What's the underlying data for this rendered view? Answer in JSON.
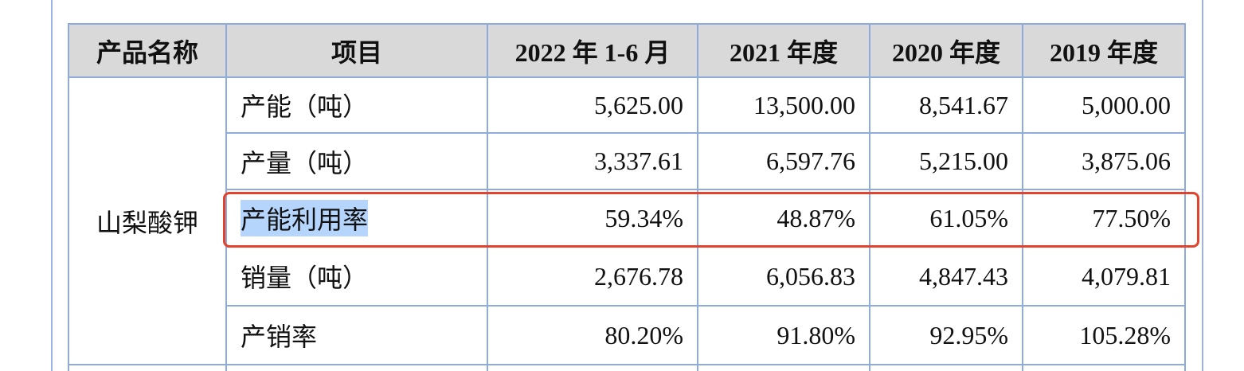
{
  "table": {
    "header": [
      "产品名称",
      "项目",
      "2022 年 1-6 月",
      "2021 年度",
      "2020 年度",
      "2019 年度"
    ],
    "product": "山梨酸钾",
    "rows": [
      [
        "产能（吨）",
        "5,625.00",
        "13,500.00",
        "8,541.67",
        "5,000.00"
      ],
      [
        "产量（吨）",
        "3,337.61",
        "6,597.76",
        "5,215.00",
        "3,875.06"
      ],
      [
        "产能利用率",
        "59.34%",
        "48.87%",
        "61.05%",
        "77.50%"
      ],
      [
        "销量（吨）",
        "2,676.78",
        "6,056.83",
        "4,847.43",
        "4,079.81"
      ],
      [
        "产销率",
        "80.20%",
        "91.80%",
        "92.95%",
        "105.28%"
      ]
    ]
  }
}
